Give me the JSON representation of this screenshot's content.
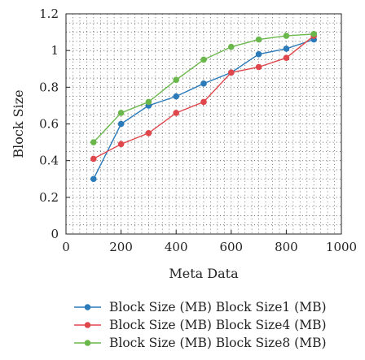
{
  "chart_data": {
    "type": "line",
    "xlabel": "Meta Data",
    "ylabel": "Block Size",
    "xlim": [
      0,
      1000
    ],
    "ylim": [
      0,
      1.2
    ],
    "xticks": [
      "0",
      "200",
      "400",
      "600",
      "800",
      "1000"
    ],
    "yticks": [
      "0",
      "0.2",
      "0.4",
      "0.6",
      "0.8",
      "1",
      "1.2"
    ],
    "grid": "dotted",
    "legend_position": "bottom",
    "x": [
      100,
      200,
      300,
      400,
      500,
      600,
      700,
      800,
      900
    ],
    "series": [
      {
        "name": "Block Size (MB) Block Size1 (MB)",
        "color": "#2b7bba",
        "values": [
          0.3,
          0.6,
          0.7,
          0.75,
          0.82,
          0.88,
          0.98,
          1.01,
          1.06
        ]
      },
      {
        "name": "Block Size (MB) Block Size4 (MB)",
        "color": "#e0474c",
        "values": [
          0.41,
          0.49,
          0.55,
          0.66,
          0.72,
          0.88,
          0.91,
          0.96,
          1.08
        ]
      },
      {
        "name": "Block Size (MB) Block Size8 (MB)",
        "color": "#6ab74b",
        "values": [
          0.5,
          0.66,
          0.72,
          0.84,
          0.95,
          1.02,
          1.06,
          1.08,
          1.09
        ]
      }
    ]
  }
}
